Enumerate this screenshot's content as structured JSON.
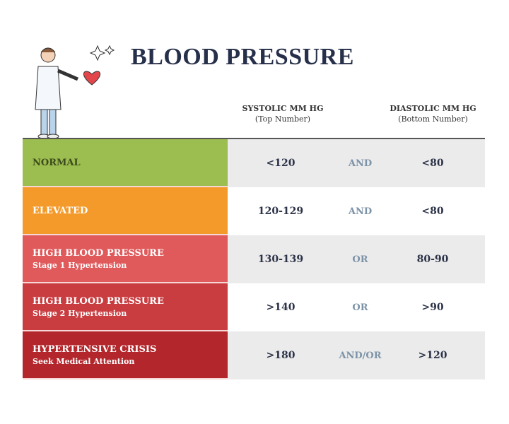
{
  "title": "BLOOD PRESSURE",
  "headers": {
    "systolic": "SYSTOLIC MM HG",
    "systolic_sub": "(Top Number)",
    "diastolic": "DIASTOLIC MM HG",
    "diastolic_sub": "(Bottom Number)"
  },
  "rows": [
    {
      "category": "NORMAL",
      "sub": "",
      "systolic": "<120",
      "connector": "AND",
      "diastolic": "<80",
      "color": "#9cbd4f",
      "text_color": "#3b4a1c",
      "bg": "#ebebeb"
    },
    {
      "category": "ELEVATED",
      "sub": "",
      "systolic": "120-129",
      "connector": "AND",
      "diastolic": "<80",
      "color": "#f39a2a",
      "text_color": "#ffffff",
      "bg": "#ffffff"
    },
    {
      "category": "HIGH BLOOD PRESSURE",
      "sub": "Stage 1 Hypertension",
      "systolic": "130-139",
      "connector": "OR",
      "diastolic": "80-90",
      "color": "#e0595b",
      "text_color": "#ffffff",
      "bg": "#ebebeb"
    },
    {
      "category": "HIGH BLOOD PRESSURE",
      "sub": "Stage 2 Hypertension",
      "systolic": ">140",
      "connector": "OR",
      "diastolic": ">90",
      "color": "#c93c40",
      "text_color": "#ffffff",
      "bg": "#ffffff"
    },
    {
      "category": "HYPERTENSIVE CRISIS",
      "sub": "Seek Medical Attention",
      "systolic": ">180",
      "connector": "AND/OR",
      "diastolic": ">120",
      "color": "#b3262b",
      "text_color": "#ffffff",
      "bg": "#ebebeb"
    }
  ],
  "icons": [
    "doctor-illustration",
    "heart-icon",
    "sparkle-icon"
  ]
}
